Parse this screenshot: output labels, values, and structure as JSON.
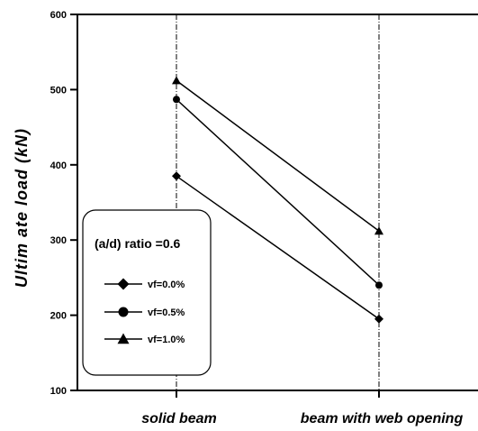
{
  "chart_data": {
    "type": "line",
    "title": "",
    "xlabel": "",
    "ylabel": "Ultim ate load (kN)",
    "ylim": [
      100,
      600
    ],
    "y_ticks": [
      "100",
      "200",
      "300",
      "400",
      "500",
      "600"
    ],
    "categories": [
      "solid beam",
      "beam with web opening"
    ],
    "series": [
      {
        "name": "vf=0.0%",
        "marker": "diamond",
        "values": [
          385,
          195
        ]
      },
      {
        "name": "vf=0.5%",
        "marker": "circle",
        "values": [
          487,
          240
        ]
      },
      {
        "name": "vf=1.0%",
        "marker": "triangle",
        "values": [
          512,
          312
        ]
      }
    ],
    "legend": {
      "title": "(a/d) ratio =0.6",
      "placement": "lower-left"
    },
    "grid": false,
    "line_color": "#000000"
  }
}
